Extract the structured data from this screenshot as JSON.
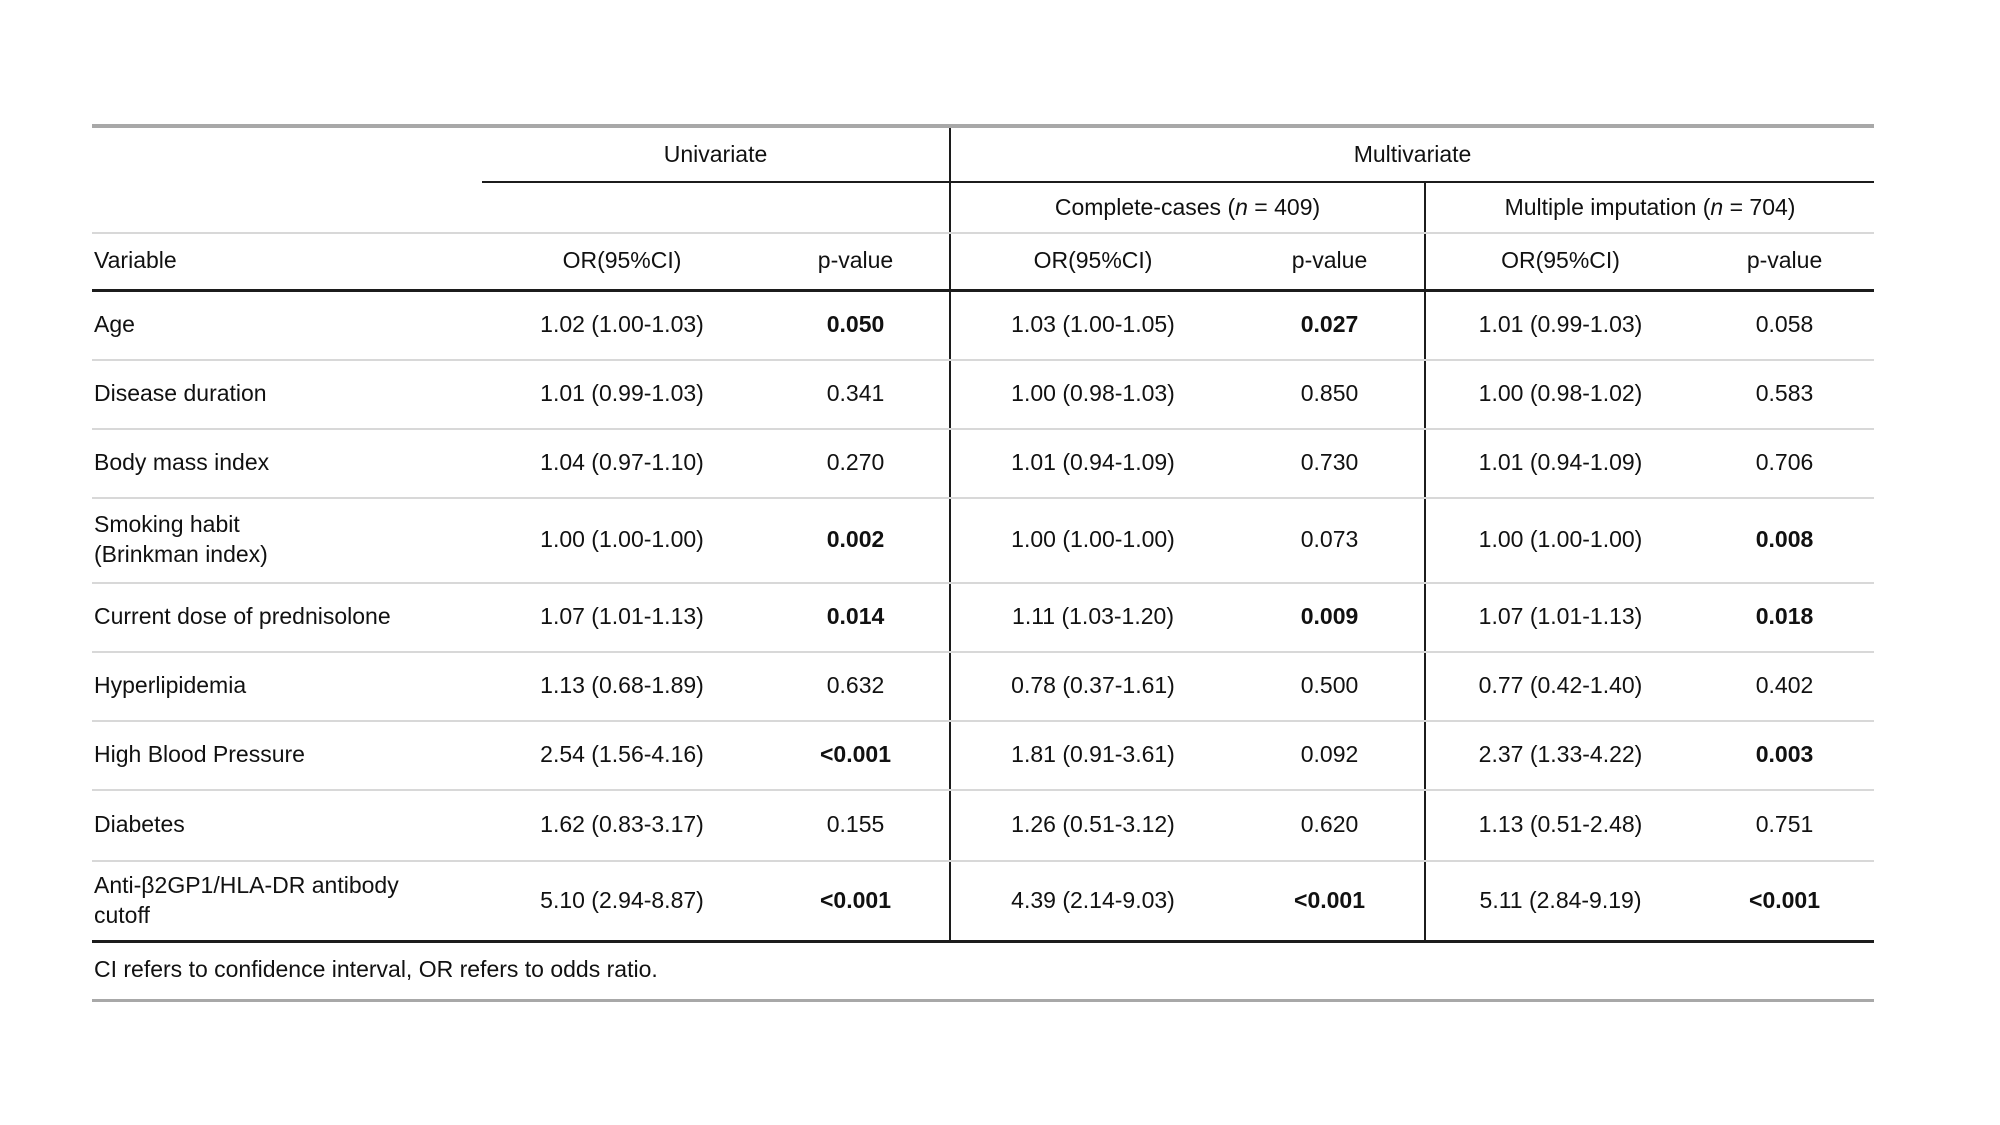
{
  "table": {
    "group_headers": {
      "univariate": "Univariate",
      "multivariate": "Multivariate"
    },
    "subheaders": {
      "complete_cases": {
        "prefix": "Complete-cases (",
        "n_symbol": "n",
        "suffix": " = 409)"
      },
      "multiple_imputation": {
        "prefix": "Multiple imputation (",
        "n_symbol": "n",
        "suffix": " = 704)"
      }
    },
    "column_headers": {
      "variable": "Variable",
      "or": "OR(95%CI)",
      "p": "p-value"
    },
    "rows": [
      {
        "variable": "Age",
        "univariate": {
          "or": "1.02 (1.00-1.03)",
          "p": "0.050",
          "p_bold": true
        },
        "complete_cases": {
          "or": "1.03 (1.00-1.05)",
          "p": "0.027",
          "p_bold": true
        },
        "multiple_imputation": {
          "or": "1.01 (0.99-1.03)",
          "p": "0.058",
          "p_bold": false
        }
      },
      {
        "variable": "Disease duration",
        "univariate": {
          "or": "1.01 (0.99-1.03)",
          "p": "0.341",
          "p_bold": false
        },
        "complete_cases": {
          "or": "1.00 (0.98-1.03)",
          "p": "0.850",
          "p_bold": false
        },
        "multiple_imputation": {
          "or": "1.00 (0.98-1.02)",
          "p": "0.583",
          "p_bold": false
        }
      },
      {
        "variable": "Body mass index",
        "univariate": {
          "or": "1.04 (0.97-1.10)",
          "p": "0.270",
          "p_bold": false
        },
        "complete_cases": {
          "or": "1.01 (0.94-1.09)",
          "p": "0.730",
          "p_bold": false
        },
        "multiple_imputation": {
          "or": "1.01 (0.94-1.09)",
          "p": "0.706",
          "p_bold": false
        }
      },
      {
        "variable": "Smoking habit\n(Brinkman index)",
        "univariate": {
          "or": "1.00 (1.00-1.00)",
          "p": "0.002",
          "p_bold": true
        },
        "complete_cases": {
          "or": "1.00 (1.00-1.00)",
          "p": "0.073",
          "p_bold": false
        },
        "multiple_imputation": {
          "or": "1.00 (1.00-1.00)",
          "p": "0.008",
          "p_bold": true
        }
      },
      {
        "variable": "Current dose of prednisolone",
        "univariate": {
          "or": "1.07 (1.01-1.13)",
          "p": "0.014",
          "p_bold": true
        },
        "complete_cases": {
          "or": "1.11 (1.03-1.20)",
          "p": "0.009",
          "p_bold": true
        },
        "multiple_imputation": {
          "or": "1.07 (1.01-1.13)",
          "p": "0.018",
          "p_bold": true
        }
      },
      {
        "variable": "Hyperlipidemia",
        "univariate": {
          "or": "1.13 (0.68-1.89)",
          "p": "0.632",
          "p_bold": false
        },
        "complete_cases": {
          "or": "0.78 (0.37-1.61)",
          "p": "0.500",
          "p_bold": false
        },
        "multiple_imputation": {
          "or": "0.77 (0.42-1.40)",
          "p": "0.402",
          "p_bold": false
        }
      },
      {
        "variable": "High Blood Pressure",
        "univariate": {
          "or": "2.54 (1.56-4.16)",
          "p": "<0.001",
          "p_bold": true
        },
        "complete_cases": {
          "or": "1.81 (0.91-3.61)",
          "p": "0.092",
          "p_bold": false
        },
        "multiple_imputation": {
          "or": "2.37 (1.33-4.22)",
          "p": "0.003",
          "p_bold": true
        }
      },
      {
        "variable": "Diabetes",
        "univariate": {
          "or": "1.62 (0.83-3.17)",
          "p": "0.155",
          "p_bold": false
        },
        "complete_cases": {
          "or": "1.26 (0.51-3.12)",
          "p": "0.620",
          "p_bold": false
        },
        "multiple_imputation": {
          "or": "1.13 (0.51-2.48)",
          "p": "0.751",
          "p_bold": false
        }
      },
      {
        "variable": "Anti-β2GP1/HLA-DR antibody\ncutoff",
        "univariate": {
          "or": "5.10 (2.94-8.87)",
          "p": "<0.001",
          "p_bold": true
        },
        "complete_cases": {
          "or": "4.39 (2.14-9.03)",
          "p": "<0.001",
          "p_bold": true
        },
        "multiple_imputation": {
          "or": "5.11 (2.84-9.19)",
          "p": "<0.001",
          "p_bold": true
        }
      }
    ],
    "footnote": "CI refers to confidence interval, OR refers to odds ratio."
  },
  "colors": {
    "rule_heavy_gray": "#a8a8a8",
    "rule_black": "#1c1c1c",
    "rule_light_gray": "#d8d8d8",
    "text": "#111111",
    "background": "#ffffff"
  }
}
